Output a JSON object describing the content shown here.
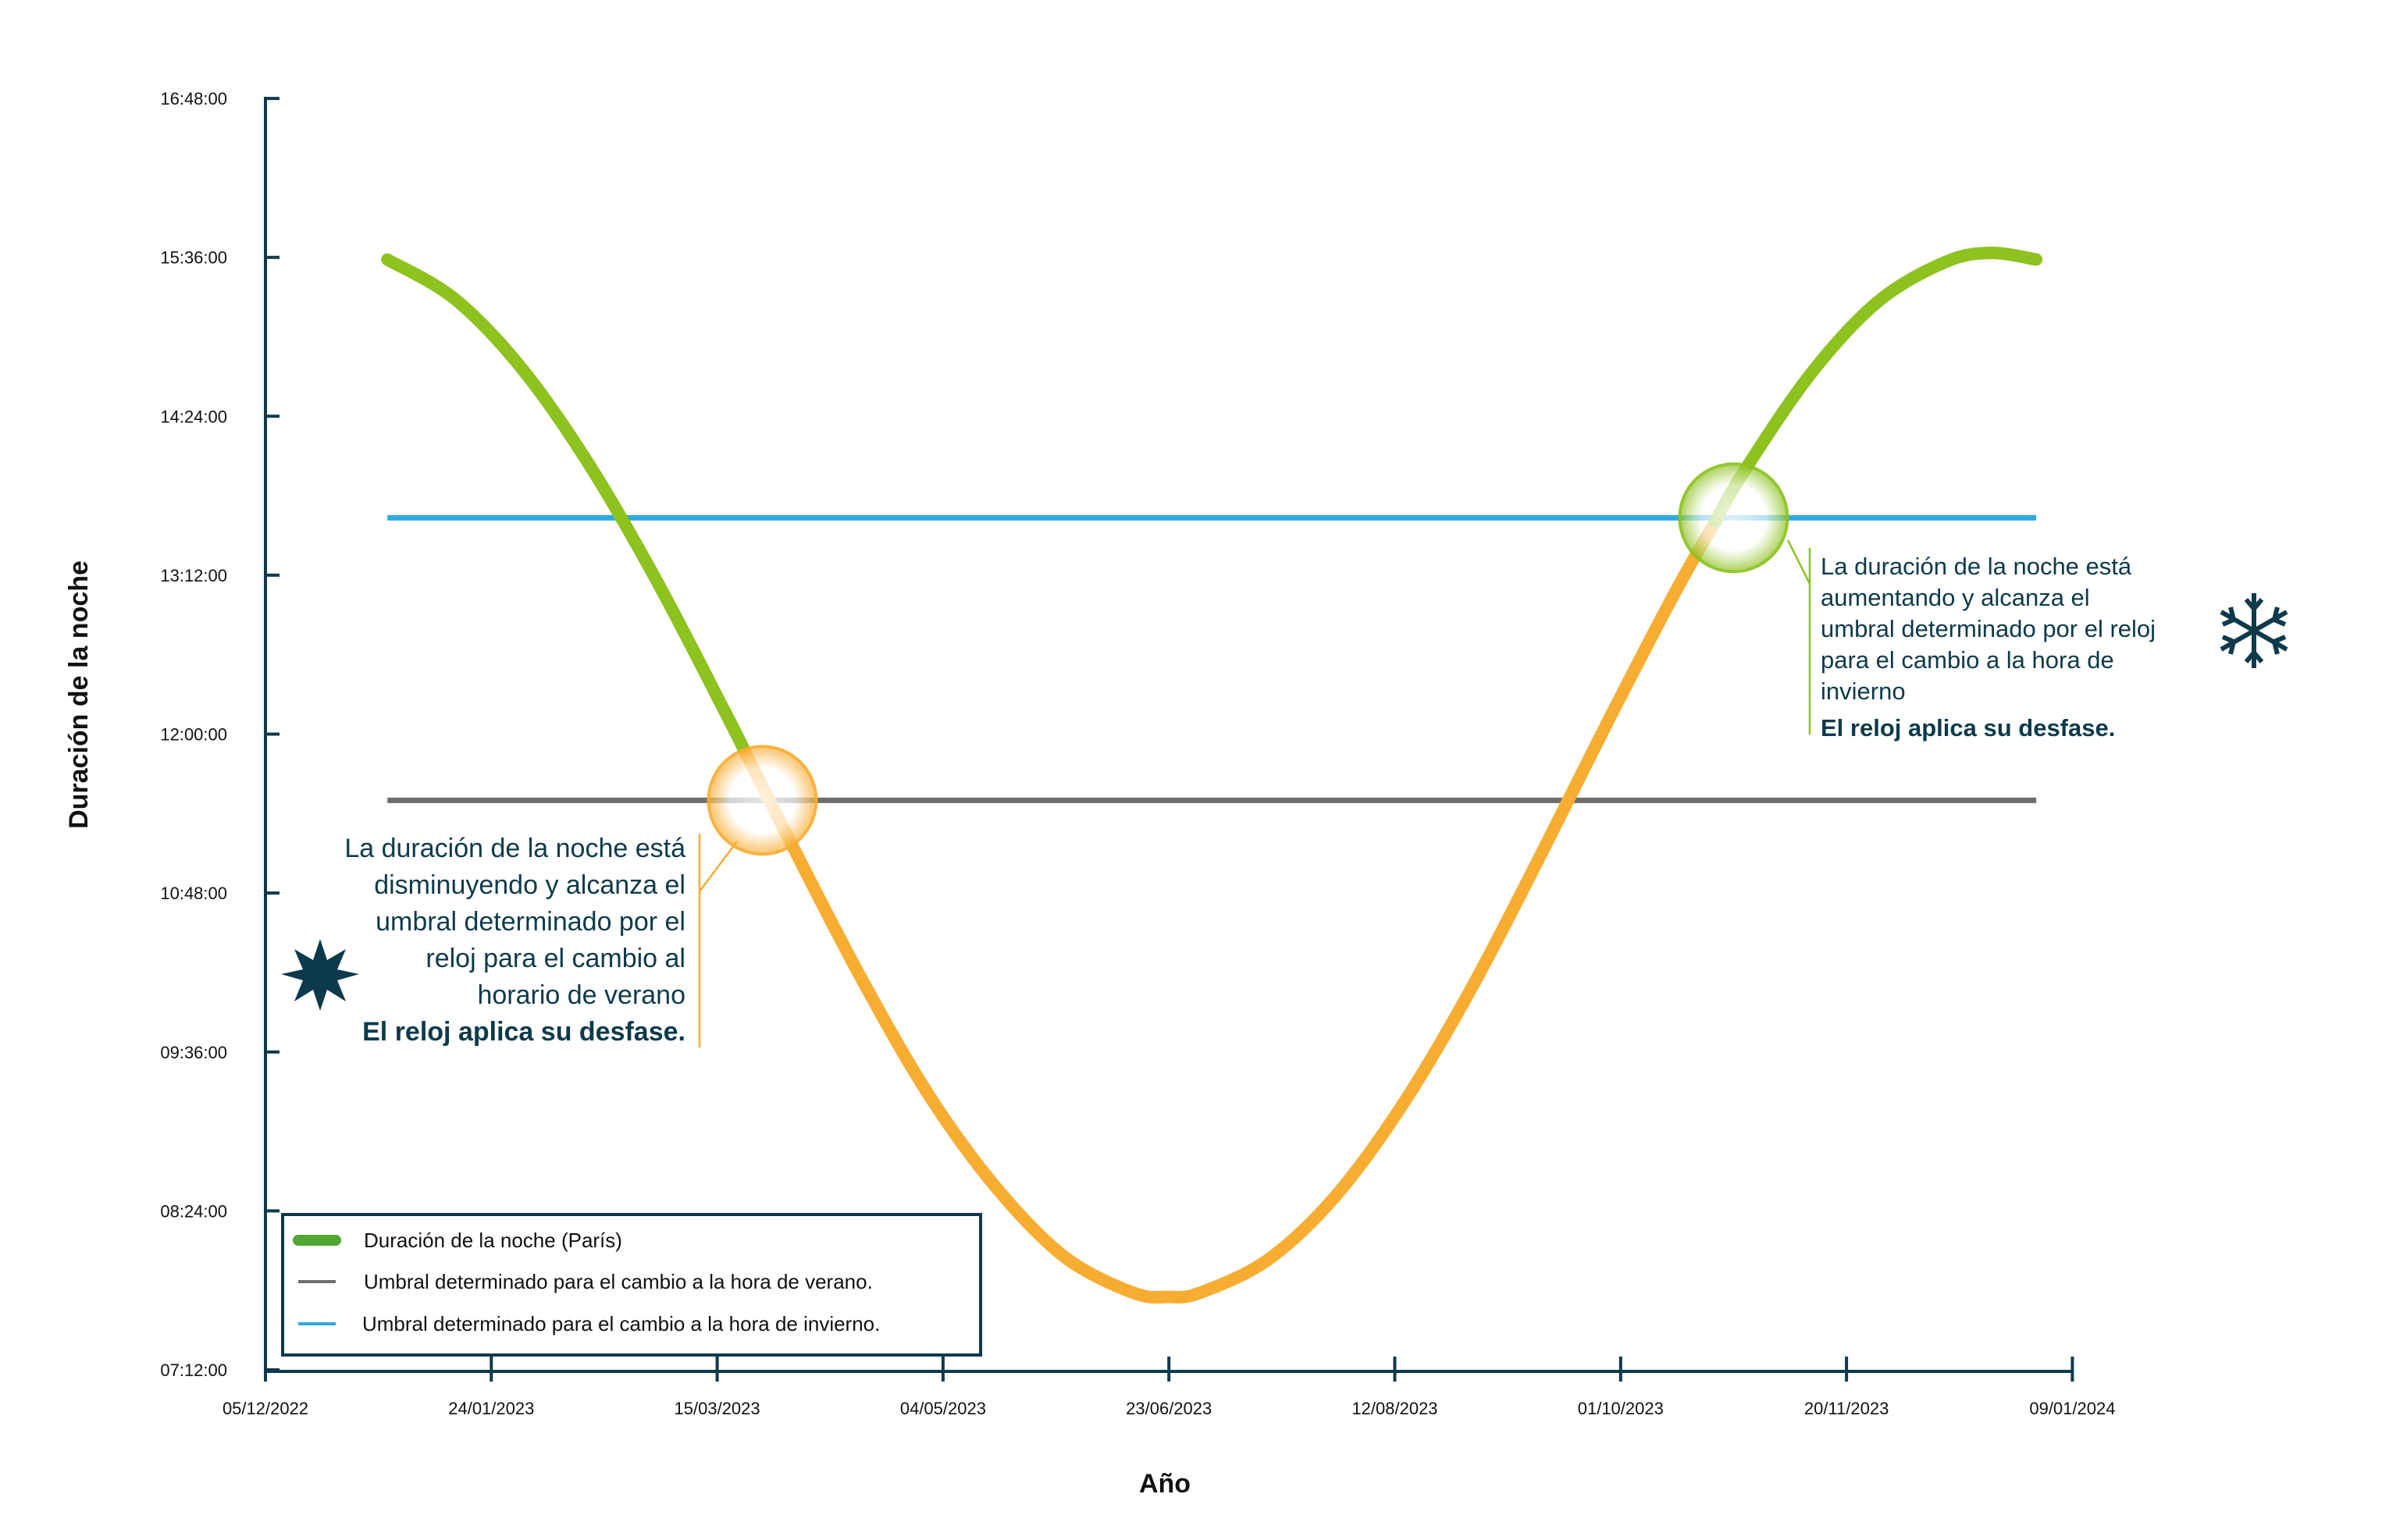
{
  "chart_data": {
    "type": "line",
    "xlabel": "Año",
    "ylabel": "Duración de la noche",
    "xlim": [
      "2022-12-05",
      "2024-01-09"
    ],
    "ylim": [
      "07:12",
      "16:48"
    ],
    "grid": false,
    "legend_position": "bottom-left",
    "xticks": [
      "05/12/2022",
      "24/01/2023",
      "15/03/2023",
      "04/05/2023",
      "23/06/2023",
      "12/08/2023",
      "01/10/2023",
      "20/11/2023",
      "09/01/2024"
    ],
    "yticks": [
      "07:12:00",
      "08:24:00",
      "09:36:00",
      "10:48:00",
      "12:00:00",
      "13:12:00",
      "14:24:00",
      "15:36:00",
      "16:48:00"
    ],
    "series": [
      {
        "name": "Duración de la noche (París)",
        "color": "#8dc21f",
        "alt_color": "#f7ad32",
        "orange_between": [
          "2023-03-21",
          "2023-10-22"
        ],
        "x": [
          "2023-01-01",
          "2023-01-16",
          "2023-01-31",
          "2023-02-15",
          "2023-03-02",
          "2023-03-17",
          "2023-04-01",
          "2023-04-16",
          "2023-05-01",
          "2023-05-16",
          "2023-05-31",
          "2023-06-15",
          "2023-06-23",
          "2023-06-30",
          "2023-07-15",
          "2023-07-30",
          "2023-08-14",
          "2023-08-29",
          "2023-09-13",
          "2023-09-28",
          "2023-10-13",
          "2023-10-28",
          "2023-11-12",
          "2023-11-27",
          "2023-12-12",
          "2023-12-22",
          "2024-01-01"
        ],
        "y": [
          "15:35",
          "15:17",
          "14:45",
          "14:01",
          "13:08",
          "12:09",
          "11:08",
          "10:09",
          "09:16",
          "08:34",
          "08:03",
          "07:47",
          "07:45",
          "07:47",
          "08:02",
          "08:31",
          "09:13",
          "10:05",
          "11:04",
          "12:05",
          "13:04",
          "13:58",
          "14:43",
          "15:16",
          "15:34",
          "15:38",
          "15:35"
        ]
      },
      {
        "name": "Umbral determinado para el cambio a la hora de verano.",
        "color": "#6d6d6d",
        "x": [
          "2023-01-01",
          "2024-01-01"
        ],
        "y": [
          "11:30",
          "11:30"
        ]
      },
      {
        "name": "Umbral determinado para el cambio a la hora de invierno.",
        "color": "#2fa9e0",
        "x": [
          "2023-01-01",
          "2024-01-01"
        ],
        "y": [
          "13:38",
          "13:38"
        ]
      }
    ],
    "legend": [
      {
        "label": "Duración de la noche (París)",
        "color": "#4ea833"
      },
      {
        "label": "Umbral determinado para el cambio a la hora de verano.",
        "color": "#6d6d6d"
      },
      {
        "label": "Umbral determinado para el cambio a la hora de invierno.",
        "color": "#2fa9e0"
      }
    ],
    "highlights": [
      {
        "name": "summer-crossing",
        "x": "2023-03-25",
        "y": "11:30",
        "color": "#f7ad32"
      },
      {
        "name": "winter-crossing",
        "x": "2023-10-26",
        "y": "13:38",
        "color": "#8dc21f"
      }
    ],
    "annotations": {
      "summer": {
        "lines": [
          "La duración de la noche está",
          "disminuyendo y alcanza el",
          "umbral determinado por el",
          "reloj para el cambio al",
          "horario de verano"
        ],
        "highlight": "El reloj aplica su desfase.",
        "icon": "sun-icon"
      },
      "winter": {
        "lines": [
          "La duración de la noche está",
          "aumentando y alcanza el",
          "umbral determinado por el reloj",
          "para el cambio a la hora de",
          "invierno"
        ],
        "highlight": "El reloj aplica su desfase.",
        "icon": "snowflake-icon"
      }
    }
  },
  "colors": {
    "axis": "#0d3a4a",
    "text_dark": "#0d3a4a",
    "orange": "#f7ad32",
    "green": "#8dc21f"
  }
}
